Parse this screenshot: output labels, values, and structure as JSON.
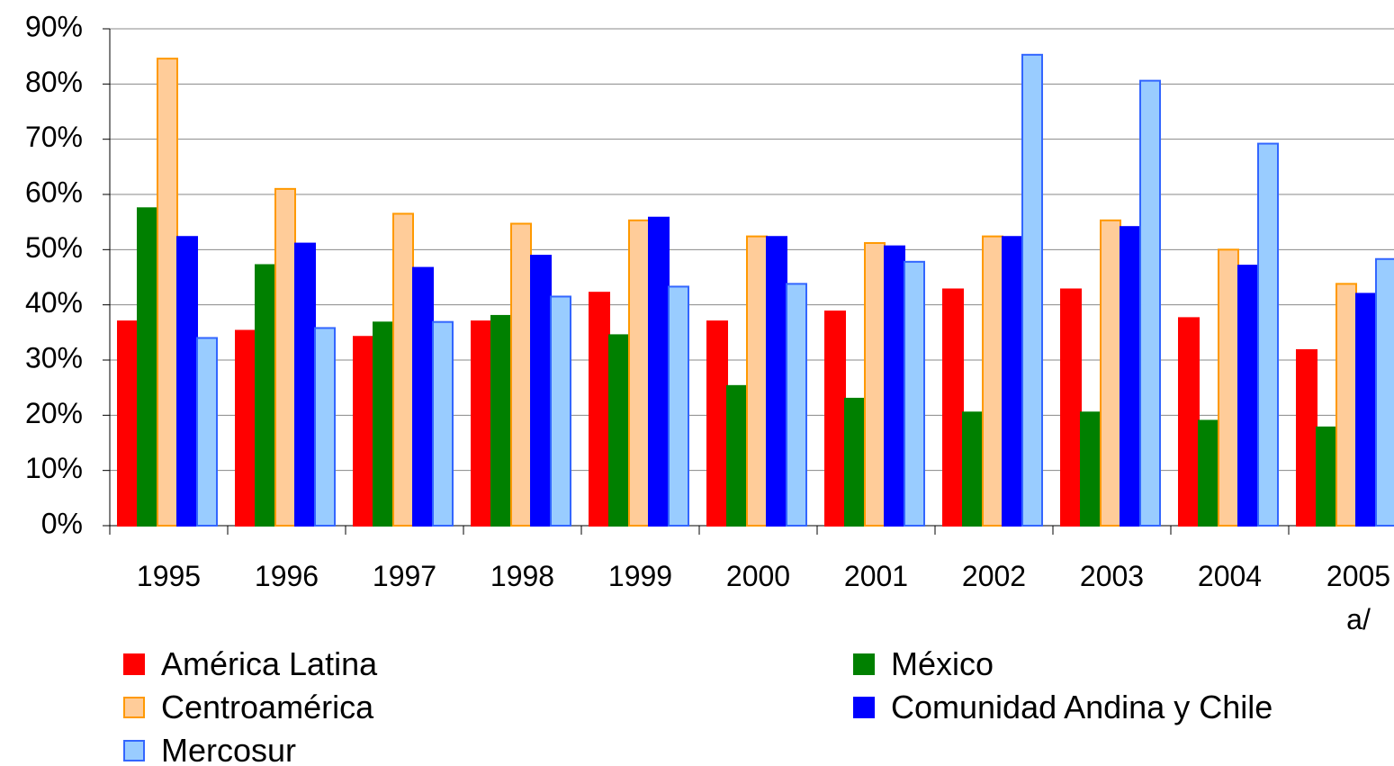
{
  "chart_data": {
    "type": "bar",
    "categories": [
      "1995",
      "1996",
      "1997",
      "1998",
      "1999",
      "2000",
      "2001",
      "2002",
      "2003",
      "2004",
      "2005 a/"
    ],
    "series": [
      {
        "name": "América Latina",
        "color": "#ff0000",
        "edgecolor": "#ff0000",
        "values": [
          37,
          35.3,
          34.2,
          37,
          42.2,
          37,
          38.8,
          42.8,
          42.8,
          37.6,
          31.8
        ]
      },
      {
        "name": "México",
        "color": "#008000",
        "edgecolor": "#008000",
        "values": [
          57.5,
          47.2,
          36.8,
          38,
          34.5,
          25.3,
          23,
          20.5,
          20.5,
          19,
          17.8
        ]
      },
      {
        "name": "Centroamérica",
        "color": "#ffcc99",
        "edgecolor": "#ff9900",
        "values": [
          84.6,
          61,
          56.5,
          54.7,
          55.3,
          52.4,
          51.2,
          52.4,
          55.3,
          50,
          43.8
        ]
      },
      {
        "name": "Comunidad Andina y Chile",
        "color": "#0000ff",
        "edgecolor": "#0000ff",
        "values": [
          52.3,
          51.1,
          46.7,
          48.9,
          55.8,
          52.3,
          50.6,
          52.3,
          54.1,
          47.1,
          42
        ]
      },
      {
        "name": "Mercosur",
        "color": "#99ccff",
        "edgecolor": "#3366ff",
        "values": [
          34,
          35.8,
          36.9,
          41.5,
          43.3,
          43.8,
          47.8,
          85.3,
          80.6,
          69.2,
          48.3
        ]
      }
    ],
    "ylim": [
      0,
      90
    ],
    "yticks": [
      {
        "value": 0,
        "label": "0%"
      },
      {
        "value": 10,
        "label": "10%"
      },
      {
        "value": 20,
        "label": "20%"
      },
      {
        "value": 30,
        "label": "30%"
      },
      {
        "value": 40,
        "label": "40%"
      },
      {
        "value": 50,
        "label": "50%"
      },
      {
        "value": 60,
        "label": "60%"
      },
      {
        "value": 70,
        "label": "70%"
      },
      {
        "value": 80,
        "label": "80%"
      },
      {
        "value": 90,
        "label": "90%"
      }
    ],
    "grid": true,
    "legend": "bottom"
  }
}
